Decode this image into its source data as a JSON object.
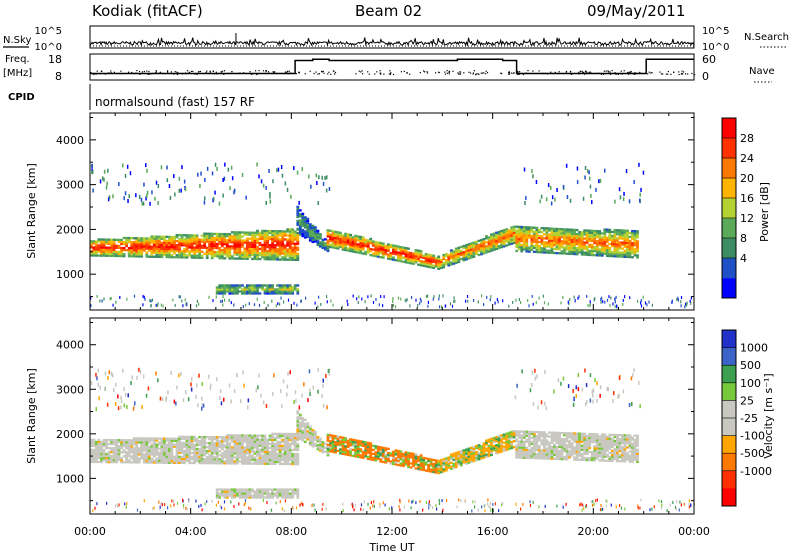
{
  "header": {
    "station": "Kodiak (fitACF)",
    "beam": "Beam 02",
    "date": "09/May/2011"
  },
  "side_labels": {
    "nsky": "N.Sky",
    "nsearch": "N.Search",
    "freq": "Freq.",
    "freq_unit": "[MHz]",
    "nave": "Nave",
    "cpid": "CPID"
  },
  "cpid_text": "normalsound (fast) 157 RF",
  "colors": {
    "power": [
      "#0000ff",
      "#2050c8",
      "#3c8c64",
      "#5aaa5a",
      "#b4d232",
      "#ffb400",
      "#ff7800",
      "#ff3200",
      "#ff0000"
    ],
    "velocity": [
      "#2030c8",
      "#3c64c8",
      "#3ca050",
      "#78c83c",
      "#c8c8c0",
      "#c8c8c0",
      "#ffa500",
      "#ff7800",
      "#ff3000",
      "#ff0000"
    ]
  },
  "chart_data": [
    {
      "type": "line",
      "panel": "noise",
      "x_range": [
        "00:00",
        "24:00"
      ],
      "left_ticks": [
        "10^5",
        "10^0"
      ],
      "right_ticks": [
        "10^5",
        "10^0"
      ]
    },
    {
      "type": "line",
      "panel": "frequency-nave",
      "left_ticks": [
        "18",
        "8"
      ],
      "right_ticks": [
        "60",
        "0"
      ],
      "freq_steps": [
        {
          "t": 0.0,
          "v": 10.5
        },
        {
          "t": 8.15,
          "v": 15.5
        },
        {
          "t": 8.85,
          "v": 16.0
        },
        {
          "t": 9.5,
          "v": 15.5
        },
        {
          "t": 14.6,
          "v": 16.0
        },
        {
          "t": 16.4,
          "v": 15.5
        },
        {
          "t": 16.95,
          "v": 10.5
        },
        {
          "t": 22.1,
          "v": 16.0
        },
        {
          "t": 24.0,
          "v": 16.0
        }
      ]
    },
    {
      "type": "heatmap",
      "panel": "power",
      "ylabel": "Slant Range [km]",
      "yticks": [
        "4000",
        "3000",
        "2000",
        "1000"
      ],
      "ylim": [
        200,
        4600
      ],
      "colorbar_title": "Power [dB]",
      "colorbar_ticks": [
        "28",
        "24",
        "20",
        "16",
        "12",
        "8",
        "4"
      ],
      "bands": [
        {
          "t0": 0.0,
          "t1": 8.2,
          "r0": 1400,
          "r1": 1750,
          "r0e": 1300,
          "r1e": 2000,
          "level": 6
        },
        {
          "t0": 5.0,
          "t1": 8.2,
          "r0": 550,
          "r1": 750,
          "r0e": 550,
          "r1e": 750,
          "level": 3
        },
        {
          "t0": 8.2,
          "t1": 9.4,
          "r0": 1900,
          "r1": 2500,
          "r0e": 1500,
          "r1e": 1700,
          "level": 2
        },
        {
          "t0": 9.4,
          "t1": 13.8,
          "r0": 1600,
          "r1": 2000,
          "r0e": 1100,
          "r1e": 1400,
          "level": 6
        },
        {
          "t0": 13.8,
          "t1": 16.9,
          "r0": 1100,
          "r1": 1400,
          "r0e": 1700,
          "r1e": 2100,
          "level": 5
        },
        {
          "t0": 16.9,
          "t1": 21.8,
          "r0": 1500,
          "r1": 2050,
          "r0e": 1350,
          "r1e": 1950,
          "level": 5
        }
      ]
    },
    {
      "type": "heatmap",
      "panel": "velocity",
      "xlabel": "Time UT",
      "ylabel": "Slant Range [km]",
      "xticks": [
        "00:00",
        "04:00",
        "08:00",
        "12:00",
        "16:00",
        "20:00",
        "00:00"
      ],
      "yticks": [
        "4000",
        "3000",
        "2000",
        "1000"
      ],
      "ylim": [
        200,
        4600
      ],
      "colorbar_title": "Velocity [m s⁻¹]",
      "colorbar_ticks": [
        "1000",
        "500",
        "100",
        "25",
        "-25",
        "-100",
        "-500",
        "-1000"
      ],
      "bands": [
        {
          "t0": 0.0,
          "t1": 8.2,
          "r0": 1350,
          "r1": 1850,
          "r0e": 1300,
          "r1e": 2000,
          "level": 4
        },
        {
          "t0": 5.0,
          "t1": 8.2,
          "r0": 550,
          "r1": 750,
          "r0e": 550,
          "r1e": 750,
          "level": 4
        },
        {
          "t0": 8.2,
          "t1": 9.4,
          "r0": 1900,
          "r1": 2500,
          "r0e": 1500,
          "r1e": 1700,
          "level": 4
        },
        {
          "t0": 9.4,
          "t1": 13.8,
          "r0": 1600,
          "r1": 2000,
          "r0e": 1100,
          "r1e": 1400,
          "level": 7
        },
        {
          "t0": 13.8,
          "t1": 16.9,
          "r0": 1100,
          "r1": 1400,
          "r0e": 1700,
          "r1e": 2100,
          "level": 6
        },
        {
          "t0": 16.9,
          "t1": 21.8,
          "r0": 1450,
          "r1": 2050,
          "r0e": 1350,
          "r1e": 1950,
          "level": 4
        }
      ]
    }
  ]
}
